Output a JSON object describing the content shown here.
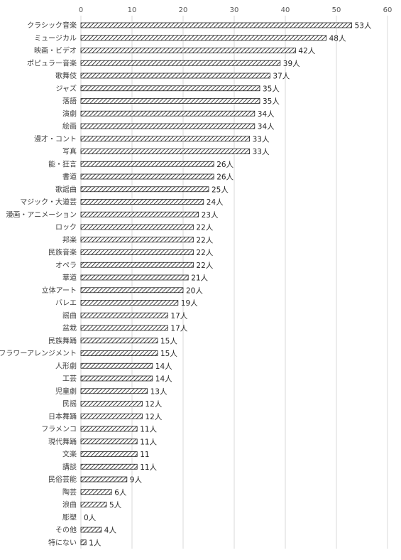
{
  "chart_data": {
    "type": "bar",
    "orientation": "horizontal",
    "xlim": [
      0,
      60
    ],
    "xticks": [
      0,
      10,
      20,
      30,
      40,
      50,
      60
    ],
    "x_axis_position": "top",
    "grid": true,
    "legend": "none",
    "bar_pattern": "diagonal-hatch",
    "bar_color": "#404040",
    "categories": [
      "クラシック音楽",
      "ミュージカル",
      "映画・ビデオ",
      "ポピュラー音楽",
      "歌舞伎",
      "ジャズ",
      "落語",
      "演劇",
      "絵画",
      "漫才・コント",
      "写真",
      "能・狂言",
      "書道",
      "歌謡曲",
      "マジック・大道芸",
      "漫画・アニメーション",
      "ロック",
      "邦楽",
      "民族音楽",
      "オペラ",
      "華道",
      "立体アート",
      "バレエ",
      "謡曲",
      "盆栽",
      "民族舞踊",
      "フラワーアレンジメント",
      "人形劇",
      "工芸",
      "児童劇",
      "民謡",
      "日本舞踊",
      "フラメンコ",
      "現代舞踊",
      "文楽",
      "講談",
      "民俗芸能",
      "陶芸",
      "浪曲",
      "彫塑",
      "その他",
      "特にない"
    ],
    "values": [
      53,
      48,
      42,
      39,
      37,
      35,
      35,
      34,
      34,
      33,
      33,
      26,
      26,
      25,
      24,
      23,
      22,
      22,
      22,
      22,
      21,
      20,
      19,
      17,
      17,
      15,
      15,
      14,
      14,
      13,
      12,
      12,
      11,
      11,
      11,
      11,
      9,
      6,
      5,
      0,
      4,
      1
    ],
    "data_labels": [
      "53人",
      "48人",
      "42人",
      "39人",
      "37人",
      "35人",
      "35人",
      "34人",
      "34人",
      "33人",
      "33人",
      "26人",
      "26人",
      "25人",
      "24人",
      "23人",
      "22人",
      "22人",
      "22人",
      "22人",
      "21人",
      "20人",
      "19人",
      "17人",
      "17人",
      "15人",
      "15人",
      "14人",
      "14人",
      "13人",
      "12人",
      "12人",
      "11人",
      "11人",
      "11",
      "11人",
      "9人",
      "6人",
      "5人",
      "0人",
      "4人",
      "1人"
    ]
  }
}
